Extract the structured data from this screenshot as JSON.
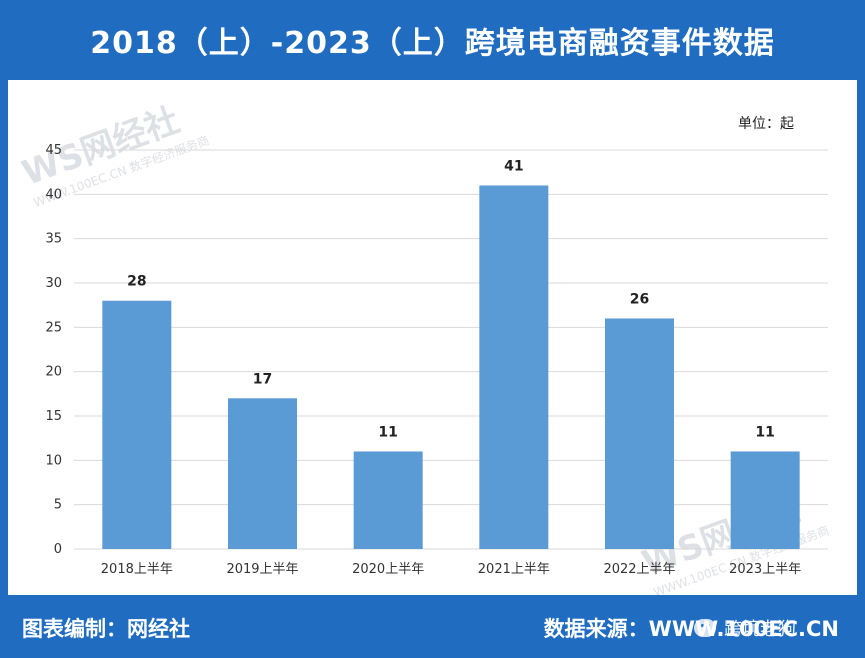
{
  "header": {
    "title": "2018（上）-2023（上）跨境电商融资事件数据"
  },
  "unit_label": "单位：起",
  "footer": {
    "left": "图表编制：网经社",
    "right": "数据来源：WWW.100EC.CN",
    "wechat": "跨境老狗"
  },
  "watermark": {
    "logo": "WS网经社",
    "sub": "WWW.100EC.CN 数字经济服务商"
  },
  "colors": {
    "bar": "#5b9bd5",
    "header_bg": "#1f6cc1",
    "grid": "#d9d9d9"
  },
  "chart_data": {
    "type": "bar",
    "categories": [
      "2018上半年",
      "2019上半年",
      "2020上半年",
      "2021上半年",
      "2022上半年",
      "2023上半年"
    ],
    "values": [
      28,
      17,
      11,
      41,
      26,
      11
    ],
    "title": "2018（上）-2023（上）跨境电商融资事件数据",
    "ylim": [
      0,
      45
    ],
    "yticks": [
      0,
      5,
      10,
      15,
      20,
      25,
      30,
      35,
      40,
      45
    ],
    "grid": true
  }
}
